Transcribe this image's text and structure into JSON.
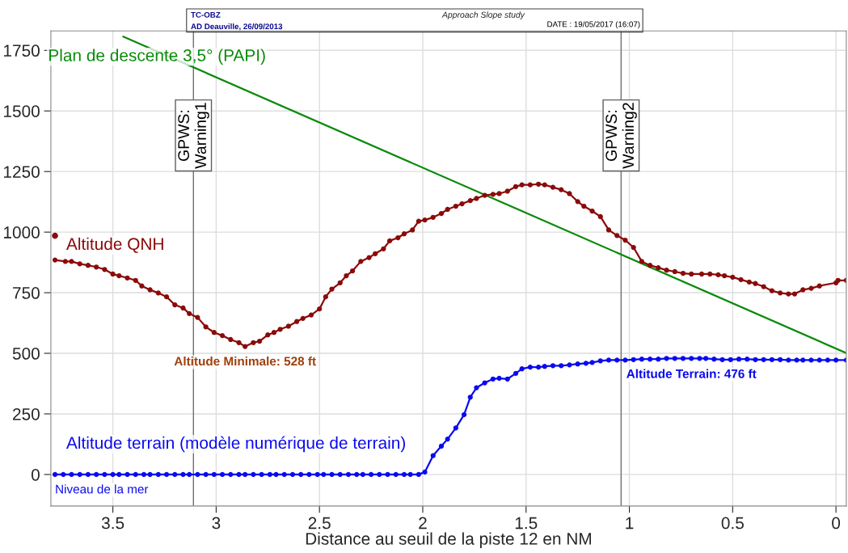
{
  "chart_data": {
    "type": "line",
    "title": "Approach Slope study",
    "xlabel": "Distance au seuil de la piste 12 en NM",
    "xlim": [
      3.8,
      -0.05
    ],
    "ylim": [
      -130,
      1830
    ],
    "xticks": [
      3.5,
      3,
      2.5,
      2,
      1.5,
      1,
      0.5,
      0
    ],
    "yticks": [
      0,
      250,
      500,
      750,
      1000,
      1250,
      1500,
      1750
    ],
    "grid": true,
    "legend": false,
    "marker": "circle",
    "line_style": "solid",
    "series": [
      {
        "name": "Plan de descente 3,5° (PAPI)",
        "color": "#0a8a0a",
        "marker": "none",
        "x": [
          3.45,
          -0.05
        ],
        "values": [
          1807,
          501
        ]
      },
      {
        "name": "Altitude QNH",
        "color": "#8b0a0a",
        "x": [
          3.78,
          3.73,
          3.7,
          3.66,
          3.62,
          3.58,
          3.54,
          3.5,
          3.47,
          3.43,
          3.39,
          3.36,
          3.32,
          3.28,
          3.24,
          3.2,
          3.16,
          3.13,
          3.09,
          3.05,
          3.01,
          2.97,
          2.93,
          2.89,
          2.86,
          2.82,
          2.79,
          2.75,
          2.72,
          2.69,
          2.65,
          2.61,
          2.58,
          2.54,
          2.5,
          2.47,
          2.44,
          2.4,
          2.37,
          2.34,
          2.3,
          2.26,
          2.23,
          2.19,
          2.16,
          2.12,
          2.09,
          2.05,
          2.02,
          1.99,
          1.95,
          1.91,
          1.88,
          1.84,
          1.81,
          1.77,
          1.74,
          1.7,
          1.66,
          1.63,
          1.59,
          1.55,
          1.52,
          1.48,
          1.44,
          1.41,
          1.37,
          1.33,
          1.29,
          1.25,
          1.22,
          1.18,
          1.14,
          1.1,
          1.06,
          1.02,
          0.98,
          0.94,
          0.9,
          0.86,
          0.82,
          0.78,
          0.74,
          0.7,
          0.65,
          0.61,
          0.57,
          0.54,
          0.5,
          0.46,
          0.42,
          0.39,
          0.35,
          0.31,
          0.27,
          0.23,
          0.2,
          0.16,
          0.12,
          0.08,
          0.0,
          -0.01,
          -0.05
        ],
        "values": [
          885,
          879,
          879,
          869,
          863,
          856,
          846,
          827,
          820,
          811,
          801,
          778,
          762,
          749,
          733,
          700,
          687,
          664,
          648,
          609,
          586,
          573,
          557,
          544,
          528,
          544,
          550,
          576,
          586,
          599,
          612,
          631,
          644,
          658,
          683,
          733,
          765,
          791,
          820,
          840,
          879,
          895,
          911,
          931,
          964,
          977,
          993,
          1009,
          1045,
          1050,
          1061,
          1077,
          1094,
          1107,
          1117,
          1130,
          1139,
          1152,
          1156,
          1159,
          1169,
          1188,
          1195,
          1195,
          1198,
          1195,
          1185,
          1175,
          1159,
          1126,
          1107,
          1087,
          1064,
          1009,
          986,
          967,
          937,
          879,
          863,
          853,
          843,
          837,
          830,
          827,
          827,
          827,
          824,
          820,
          814,
          804,
          794,
          788,
          775,
          758,
          749,
          745,
          745,
          762,
          768,
          778,
          791,
          801,
          801
        ]
      },
      {
        "color": "#8b0a0a",
        "type": "scatter",
        "x": [
          3.78
        ],
        "values": [
          985
        ]
      },
      {
        "name": "Altitude terrain (modèle numérique de terrain)",
        "color": "#0a0af0",
        "x": [
          3.78,
          3.74,
          3.7,
          3.66,
          3.62,
          3.58,
          3.54,
          3.5,
          3.47,
          3.43,
          3.39,
          3.35,
          3.32,
          3.28,
          3.24,
          3.2,
          3.16,
          3.13,
          3.09,
          3.05,
          3.01,
          2.97,
          2.93,
          2.89,
          2.86,
          2.82,
          2.78,
          2.74,
          2.71,
          2.67,
          2.63,
          2.59,
          2.55,
          2.51,
          2.48,
          2.44,
          2.4,
          2.36,
          2.32,
          2.29,
          2.25,
          2.21,
          2.17,
          2.13,
          2.09,
          2.06,
          2.02,
          1.99,
          1.95,
          1.91,
          1.88,
          1.84,
          1.8,
          1.77,
          1.74,
          1.7,
          1.66,
          1.63,
          1.59,
          1.55,
          1.52,
          1.48,
          1.44,
          1.41,
          1.37,
          1.33,
          1.29,
          1.25,
          1.21,
          1.18,
          1.14,
          1.1,
          1.06,
          1.02,
          0.98,
          0.94,
          0.9,
          0.86,
          0.82,
          0.78,
          0.74,
          0.7,
          0.66,
          0.63,
          0.59,
          0.55,
          0.51,
          0.47,
          0.43,
          0.39,
          0.35,
          0.31,
          0.27,
          0.23,
          0.19,
          0.16,
          0.12,
          0.08,
          0.04,
          0.0,
          -0.05
        ],
        "values": [
          0,
          0,
          0,
          0,
          0,
          0,
          0,
          0,
          0,
          0,
          0,
          0,
          0,
          0,
          0,
          0,
          0,
          0,
          0,
          0,
          0,
          0,
          0,
          0,
          0,
          0,
          0,
          0,
          0,
          0,
          0,
          0,
          0,
          0,
          0,
          0,
          0,
          0,
          0,
          0,
          0,
          0,
          0,
          0,
          0,
          0,
          0,
          10,
          78,
          117,
          146,
          192,
          247,
          319,
          358,
          378,
          394,
          397,
          394,
          417,
          436,
          443,
          443,
          446,
          449,
          449,
          452,
          456,
          459,
          462,
          469,
          472,
          472,
          472,
          474,
          476,
          476,
          476,
          479,
          479,
          479,
          479,
          479,
          479,
          476,
          474,
          474,
          476,
          476,
          474,
          474,
          474,
          474,
          472,
          472,
          472,
          472,
          472,
          472,
          472,
          472
        ]
      }
    ],
    "ref_lines": [
      {
        "axis": "x",
        "value": 3.11,
        "label": "GPWS:\nWarning1",
        "color": "#707070"
      },
      {
        "axis": "x",
        "value": 1.04,
        "label": "GPWS:\nWarning2",
        "color": "#707070"
      }
    ],
    "annotations": [
      "TC-OBZ",
      "AD Deauville, 26/09/2013",
      "DATE : 19/05/2017 (16:07)",
      {
        "text": "Altitude Minimale: 528 ft",
        "x": 2.86,
        "y": 528
      },
      {
        "text": "Niveau de la mer",
        "x": 3.78,
        "y": 0
      },
      {
        "text": "Altitude Terrain: 476 ft",
        "x": 0.7,
        "y": 476
      }
    ]
  }
}
